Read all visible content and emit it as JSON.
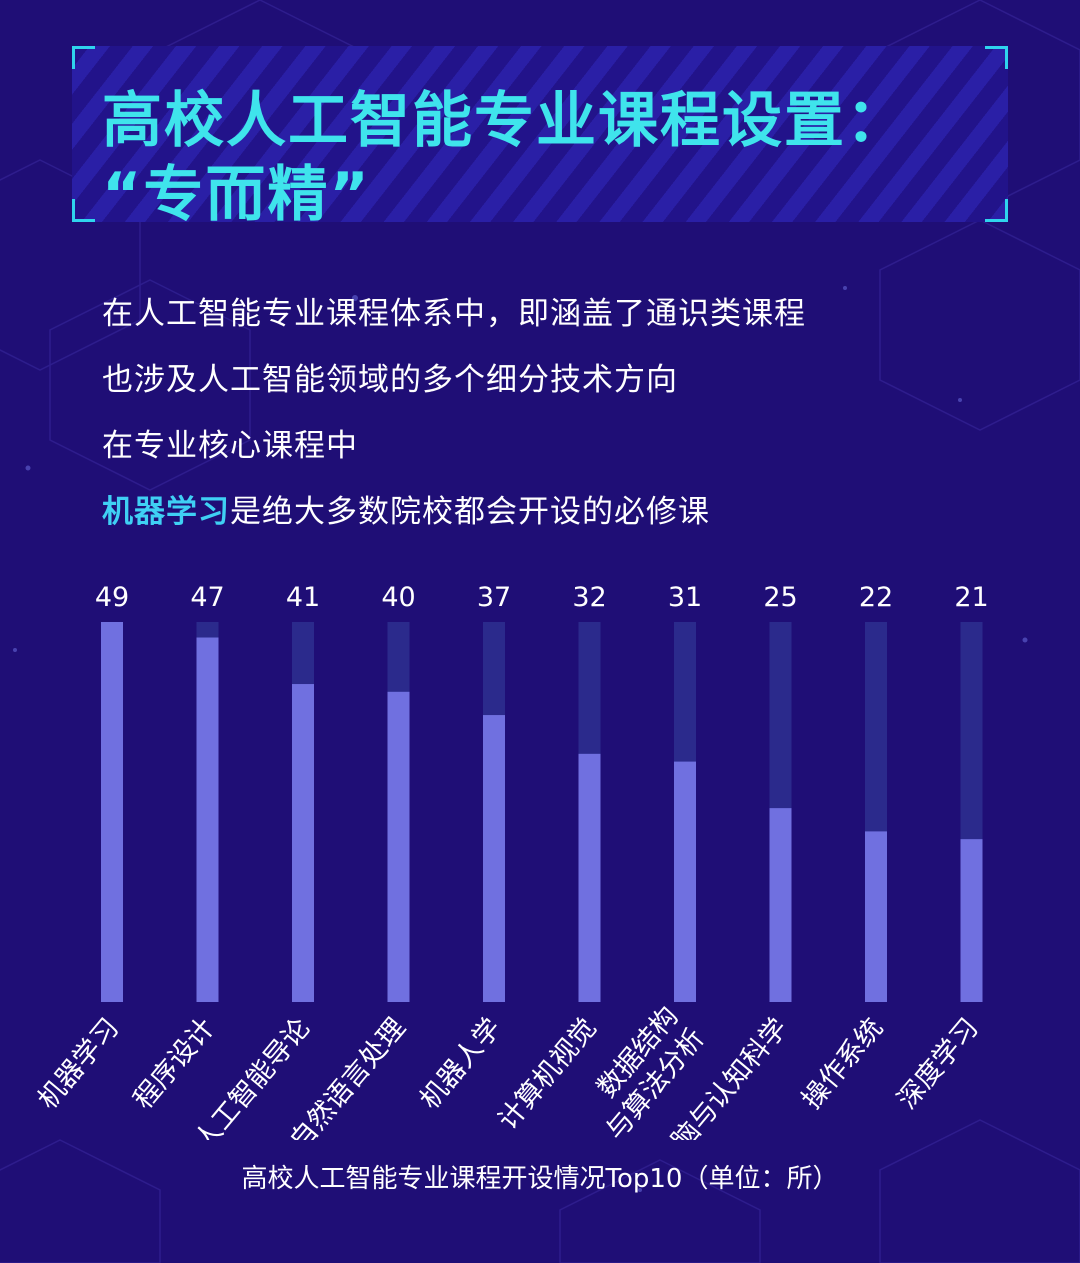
{
  "title": {
    "line1": "高校人工智能专业课程设置：",
    "line2": "“专而精”"
  },
  "intro": {
    "line1": "在人工智能专业课程体系中，即涵盖了通识类课程",
    "line2": "也涉及人工智能领域的多个细分技术方向",
    "line3": "在专业核心课程中",
    "line4_highlight": "机器学习",
    "line4_rest": "是绝大多数院校都会开设的必修课"
  },
  "colors": {
    "background": "#1f0e76",
    "title": "#3fe4ec",
    "highlight": "#3fd0f4",
    "bar": "#7070e0",
    "track": "#2b2a8c"
  },
  "chart_data": {
    "type": "bar",
    "categories": [
      "机器学习",
      "程序设计",
      "人工智能导论",
      "自然语言处理",
      "机器人学",
      "计算机视觉",
      "数据结构\n与算法分析",
      "脑与认知科学",
      "操作系统",
      "深度学习"
    ],
    "values": [
      49,
      47,
      41,
      40,
      37,
      32,
      31,
      25,
      22,
      21
    ],
    "title": "高校人工智能专业课程开设情况Top10（单位：所）",
    "ylim": [
      0,
      49
    ],
    "grid": false,
    "legend": "none"
  }
}
